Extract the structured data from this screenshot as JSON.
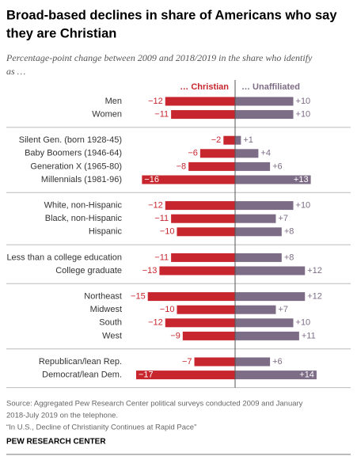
{
  "chart_data": {
    "type": "diverging-bar",
    "title": [
      "Broad-based declines in share of Americans who say",
      "they are Christian"
    ],
    "subtitle": [
      "Percentage-point change between 2009 and 2018/2019 in the share who identify",
      "as …"
    ],
    "categories": [
      "Men",
      "Women",
      "Silent Gen. (born 1928-45)",
      "Baby Boomers (1946-64)",
      "Generation X (1965-80)",
      "Millennials (1981-96)",
      "White, non-Hispanic",
      "Black, non-Hispanic",
      "Hispanic",
      "Less than a college education",
      "College graduate",
      "Northeast",
      "Midwest",
      "South",
      "West",
      "Republican/lean Rep.",
      "Democrat/lean Dem."
    ],
    "series": [
      {
        "name": "… Christian",
        "color": "#c8262e",
        "values": [
          -12,
          -11,
          -2,
          -6,
          -8,
          -16,
          -12,
          -11,
          -10,
          -11,
          -13,
          -15,
          -10,
          -12,
          -9,
          -7,
          -17
        ],
        "value_labels": [
          "−12",
          "−11",
          "−2",
          "−6",
          "−8",
          "−16",
          "−12",
          "−11",
          "−10",
          "−11",
          "−13",
          "−15",
          "−10",
          "−12",
          "−9",
          "−7",
          "−17"
        ]
      },
      {
        "name": "… Unaffiliated",
        "color": "#7d6c85",
        "values": [
          10,
          10,
          1,
          4,
          6,
          13,
          10,
          7,
          8,
          8,
          12,
          12,
          7,
          10,
          11,
          6,
          14
        ],
        "value_labels": [
          "+10",
          "+10",
          "+1",
          "+4",
          "+6",
          "+13",
          "+10",
          "+7",
          "+8",
          "+8",
          "+12",
          "+12",
          "+7",
          "+10",
          "+11",
          "+6",
          "+14"
        ]
      }
    ],
    "source": [
      "Source: Aggregated Pew Research Center political surveys conducted 2009 and January",
      "2018-July 2019 on the telephone.",
      "“In U.S., Decline of Christianity Continues at Rapid Pace”"
    ],
    "credit": "PEW RESEARCH CENTER"
  }
}
